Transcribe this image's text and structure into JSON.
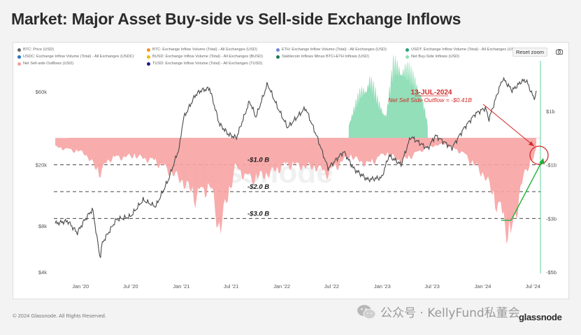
{
  "title": "Market: Major Asset Buy-side vs Sell-side Exchange Inflows",
  "legend": [
    {
      "label": "BTC: Price (USD)",
      "color": "#666666"
    },
    {
      "label": "BTC: Exchange Inflow Volume (Total) - All Exchanges (USD)",
      "color": "#f7931a"
    },
    {
      "label": "ETH: Exchange Inflow Volume (Total) - All Exchanges (USD)",
      "color": "#6f86d6"
    },
    {
      "label": "USDT: Exchange Inflow Volume (Total) - All Exchanges (USDT)",
      "color": "#26a17b"
    },
    {
      "label": "USDC: Exchange Inflow Volume (Total) - All Exchanges (USDC)",
      "color": "#2775ca"
    },
    {
      "label": "BUSD: Exchange Inflow Volume (Total) - All Exchanges (BUSD)",
      "color": "#f0b90b"
    },
    {
      "label": "Stablecoin Inflows Minus BTC+ETH Inflows (USD)",
      "color": "#1a7a50"
    },
    {
      "label": "Net Buy-Side Inflows (USD)",
      "color": "#8fe0b8"
    },
    {
      "label": "Net Sell-side Outflows (USD)",
      "color": "#f6a0a0"
    },
    {
      "label": "TUSD: Exchange Inflow Volume (Total) - All Exchanges (TUSD)",
      "color": "#1e1e8a"
    }
  ],
  "reset_zoom": "Reset zoom",
  "annotations": {
    "date": "13-JUL-2024",
    "outflow": "Net Sell Side Outflow = -$0.41B",
    "levels": [
      "-$1.0 B",
      "-$2.0 B",
      "-$3.0 B"
    ],
    "watermark": "glassnode"
  },
  "footer": {
    "copyright": "© 2024 Glassnode. All Rights Reserved.",
    "wechat": "公众号 · KellyFund私董会",
    "brand": "glassnode"
  },
  "chart_data": {
    "type": "line",
    "x_ticks": [
      "Jan '20",
      "Jul '20",
      "Jan '21",
      "Jul '21",
      "Jan '22",
      "Jul '22",
      "Jan '23",
      "Jul '23",
      "Jan '24",
      "Jul '24"
    ],
    "y_left": {
      "scale": "log",
      "ticks": [
        "$4k",
        "$8k",
        "$20k",
        "$60k"
      ],
      "tick_values": [
        4000,
        8000,
        20000,
        60000
      ]
    },
    "y_right": {
      "ticks": [
        "$1b",
        "-$1b",
        "-$3b",
        "-$5b"
      ],
      "tick_values": [
        1,
        -1,
        -3,
        -5
      ]
    },
    "series": [
      {
        "name": "BTC: Price (USD)",
        "x": [
          "2019-10-01",
          "2019-11-15",
          "2019-12-20",
          "2020-01-15",
          "2020-02-14",
          "2020-03-12",
          "2020-03-20",
          "2020-05-10",
          "2020-06-30",
          "2020-08-15",
          "2020-09-30",
          "2020-11-15",
          "2020-12-25",
          "2021-01-08",
          "2021-02-21",
          "2021-03-13",
          "2021-04-14",
          "2021-05-19",
          "2021-06-22",
          "2021-07-20",
          "2021-09-06",
          "2021-09-29",
          "2021-11-10",
          "2021-12-15",
          "2022-01-22",
          "2022-03-28",
          "2022-05-10",
          "2022-06-18",
          "2022-08-14",
          "2022-09-20",
          "2022-11-09",
          "2022-12-30",
          "2023-01-25",
          "2023-03-10",
          "2023-04-14",
          "2023-06-15",
          "2023-07-13",
          "2023-09-11",
          "2023-10-24",
          "2023-12-05",
          "2024-01-11",
          "2024-01-23",
          "2024-02-28",
          "2024-03-14",
          "2024-04-17",
          "2024-05-21",
          "2024-06-07",
          "2024-07-05",
          "2024-07-13"
        ],
        "values": [
          8300,
          8600,
          7200,
          8700,
          10300,
          4900,
          6200,
          8800,
          9200,
          11800,
          10700,
          16000,
          26000,
          40000,
          57000,
          61000,
          63000,
          37000,
          31500,
          30000,
          52000,
          41000,
          67500,
          48000,
          35000,
          47000,
          30000,
          19000,
          24400,
          18800,
          16000,
          16500,
          23000,
          20000,
          30500,
          25500,
          31000,
          25800,
          34500,
          43000,
          47000,
          39500,
          62000,
          73000,
          61000,
          70000,
          71000,
          54000,
          59000
        ]
      },
      {
        "name": "Net Sell-side Outflows (USD)",
        "x": [
          "2019-10-01",
          "2020-01-15",
          "2020-03-12",
          "2020-04-15",
          "2020-07-15",
          "2020-10-01",
          "2020-12-15",
          "2021-01-10",
          "2021-02-20",
          "2021-04-15",
          "2021-05-20",
          "2021-07-15",
          "2021-09-10",
          "2021-11-15",
          "2022-01-20",
          "2022-05-10",
          "2022-06-18",
          "2022-09-01",
          "2022-11-10",
          "2023-01-15",
          "2023-03-10",
          "2023-06-15",
          "2023-08-15",
          "2023-10-20",
          "2024-01-10",
          "2024-03-10",
          "2024-04-15",
          "2024-05-20",
          "2024-07-13"
        ],
        "values": [
          -0.3,
          -0.5,
          -1.2,
          -0.7,
          -0.6,
          -0.8,
          -1.3,
          -1.5,
          -2.0,
          -1.6,
          -3.1,
          -1.0,
          -1.4,
          -1.2,
          -0.9,
          -1.0,
          -1.2,
          -0.6,
          -0.9,
          -0.5,
          -0.8,
          -0.3,
          -0.2,
          -0.5,
          -1.3,
          -2.6,
          -3.4,
          -1.5,
          -0.41
        ]
      },
      {
        "name": "Net Buy-Side Inflows (USD)",
        "x": [
          "2022-09-01",
          "2022-10-15",
          "2022-11-15",
          "2022-12-15",
          "2023-01-15",
          "2023-02-10",
          "2023-03-12",
          "2023-04-15",
          "2023-05-15",
          "2023-06-15"
        ],
        "values": [
          0.5,
          1.5,
          2.0,
          1.2,
          0.8,
          2.3,
          2.5,
          2.0,
          1.8,
          0.4
        ]
      }
    ]
  }
}
